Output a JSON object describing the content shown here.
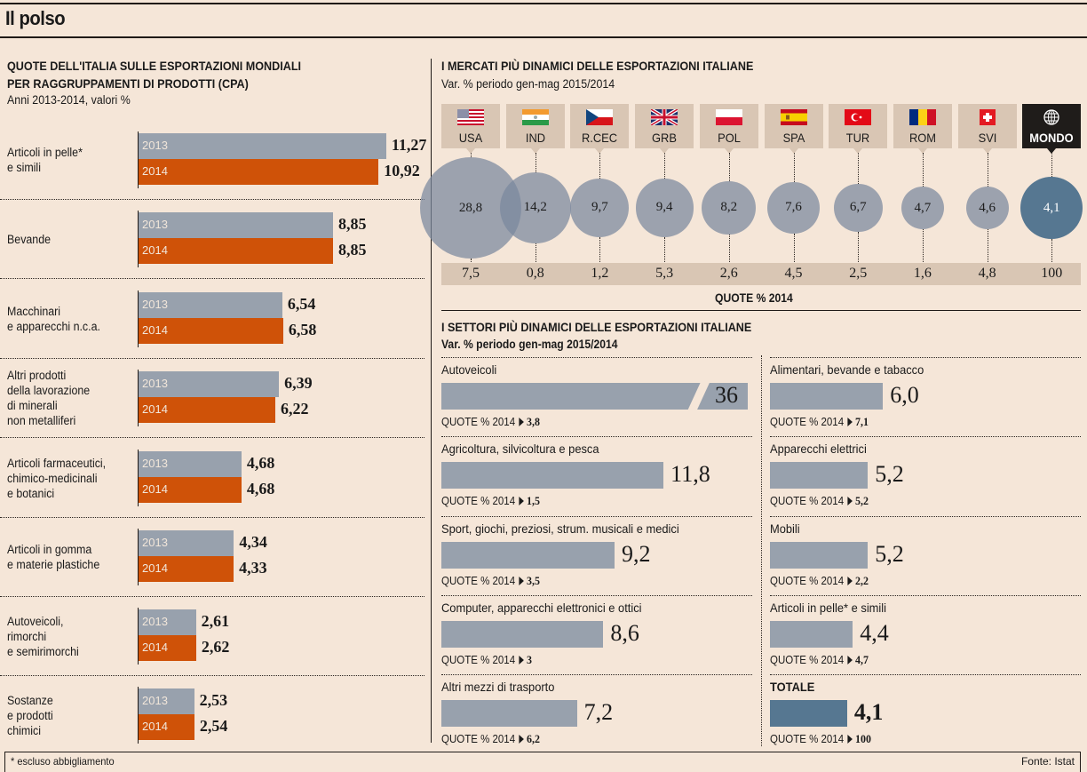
{
  "page": {
    "title": "Il polso",
    "footnote": "* escluso abbigliamento",
    "source": "Fonte: Istat"
  },
  "left": {
    "title_line1": "QUOTE DELL'ITALIA SULLE ESPORTAZIONI MONDIALI",
    "title_line2": "PER RAGGRUPPAMENTI DI PRODOTTI (CPA)",
    "subtitle": "Anni 2013-2014, valori %",
    "year_a": "2013",
    "year_b": "2014"
  },
  "markets": {
    "title": "I MERCATI PIÙ DINAMICI DELLE ESPORTAZIONI ITALIANE",
    "subtitle": "Var. % periodo gen-mag 2015/2014",
    "quote_label": "QUOTE % 2014"
  },
  "sectors": {
    "title": "I SETTORI PIÙ DINAMICI DELLE ESPORTAZIONI ITALIANE",
    "subtitle": "Var. % periodo gen-mag 2015/2014",
    "quote_prefix": "QUOTE % 2014"
  },
  "colors": {
    "background": "#f5e6d8",
    "bar_2013": "#98a1ad",
    "bar_2014": "#cf5208",
    "bubble": "#7a889e",
    "mondo": "#567791",
    "tab": "#d9c6b4"
  },
  "chart_data": [
    {
      "type": "bar",
      "title": "QUOTE DELL'ITALIA SULLE ESPORTAZIONI MONDIALI PER RAGGRUPPAMENTI DI PRODOTTI (CPA)",
      "subtitle": "Anni 2013-2014, valori %",
      "orientation": "horizontal",
      "categories": [
        [
          "Articoli in pelle*",
          "e simili"
        ],
        [
          "Bevande"
        ],
        [
          "Macchinari",
          "e apparecchi n.c.a."
        ],
        [
          "Altri prodotti",
          "della lavorazione",
          "di minerali",
          "non metalliferi"
        ],
        [
          "Articoli farmaceutici,",
          "chimico-medicinali",
          "e botanici"
        ],
        [
          "Articoli in gomma",
          "e materie plastiche"
        ],
        [
          "Autoveicoli,",
          "rimorchi",
          "e semirimorchi"
        ],
        [
          "Sostanze",
          "e prodotti",
          "chimici"
        ]
      ],
      "series": [
        {
          "name": "2013",
          "values": [
            11.27,
            8.85,
            6.54,
            6.39,
            4.68,
            4.34,
            2.61,
            2.53
          ],
          "labels": [
            "11,27",
            "8,85",
            "6,54",
            "6,39",
            "4,68",
            "4,34",
            "2,61",
            "2,53"
          ]
        },
        {
          "name": "2014",
          "values": [
            10.92,
            8.85,
            6.58,
            6.22,
            4.68,
            4.33,
            2.62,
            2.54
          ],
          "labels": [
            "10,92",
            "8,85",
            "6,58",
            "6,22",
            "4,68",
            "4,33",
            "2,62",
            "2,54"
          ]
        }
      ]
    },
    {
      "type": "scatter",
      "title": "I MERCATI PIÙ DINAMICI DELLE ESPORTAZIONI ITALIANE",
      "subtitle": "Var. % periodo gen-mag 2015/2014",
      "markets": [
        {
          "code": "USA",
          "flag": "usa",
          "var": 28.8,
          "var_label": "28,8",
          "quota_label": "7,5"
        },
        {
          "code": "IND",
          "flag": "india",
          "var": 14.2,
          "var_label": "14,2",
          "quota_label": "0,8"
        },
        {
          "code": "R.CEC",
          "flag": "czech",
          "var": 9.7,
          "var_label": "9,7",
          "quota_label": "1,2"
        },
        {
          "code": "GRB",
          "flag": "uk",
          "var": 9.4,
          "var_label": "9,4",
          "quota_label": "5,3"
        },
        {
          "code": "POL",
          "flag": "poland",
          "var": 8.2,
          "var_label": "8,2",
          "quota_label": "2,6"
        },
        {
          "code": "SPA",
          "flag": "spain",
          "var": 7.6,
          "var_label": "7,6",
          "quota_label": "4,5"
        },
        {
          "code": "TUR",
          "flag": "turkey",
          "var": 6.7,
          "var_label": "6,7",
          "quota_label": "2,5"
        },
        {
          "code": "ROM",
          "flag": "romania",
          "var": 4.7,
          "var_label": "4,7",
          "quota_label": "1,6"
        },
        {
          "code": "SVI",
          "flag": "switzerland",
          "var": 4.6,
          "var_label": "4,6",
          "quota_label": "4,8"
        },
        {
          "code": "MONDO",
          "flag": "globe-icon",
          "var": 4.1,
          "var_label": "4,1",
          "quota_label": "100"
        }
      ],
      "quota_axis_label": "QUOTE % 2014"
    },
    {
      "type": "bar",
      "title": "I SETTORI PIÙ DINAMICI DELLE ESPORTAZIONI ITALIANE",
      "subtitle": "Var. % periodo gen-mag 2015/2014",
      "orientation": "horizontal",
      "columns": [
        [
          {
            "label": "Autoveicoli",
            "value": 36,
            "value_label": "36",
            "quota": "3,8",
            "broken": true
          },
          {
            "label": "Agricoltura, silvicoltura e pesca",
            "value": 11.8,
            "value_label": "11,8",
            "quota": "1,5"
          },
          {
            "label": "Sport, giochi, preziosi, strum. musicali e medici",
            "value": 9.2,
            "value_label": "9,2",
            "quota": "3,5"
          },
          {
            "label": "Computer, apparecchi elettronici e ottici",
            "value": 8.6,
            "value_label": "8,6",
            "quota": "3"
          },
          {
            "label": "Altri mezzi di trasporto",
            "value": 7.2,
            "value_label": "7,2",
            "quota": "6,2"
          }
        ],
        [
          {
            "label": "Alimentari, bevande e tabacco",
            "value": 6.0,
            "value_label": "6,0",
            "quota": "7,1"
          },
          {
            "label": "Apparecchi elettrici",
            "value": 5.2,
            "value_label": "5,2",
            "quota": "5,2"
          },
          {
            "label": "Mobili",
            "value": 5.2,
            "value_label": "5,2",
            "quota": "2,2"
          },
          {
            "label": "Articoli in pelle* e simili",
            "value": 4.4,
            "value_label": "4,4",
            "quota": "4,7"
          },
          {
            "label": "TOTALE",
            "value": 4.1,
            "value_label": "4,1",
            "quota": "100",
            "total": true
          }
        ]
      ]
    }
  ]
}
